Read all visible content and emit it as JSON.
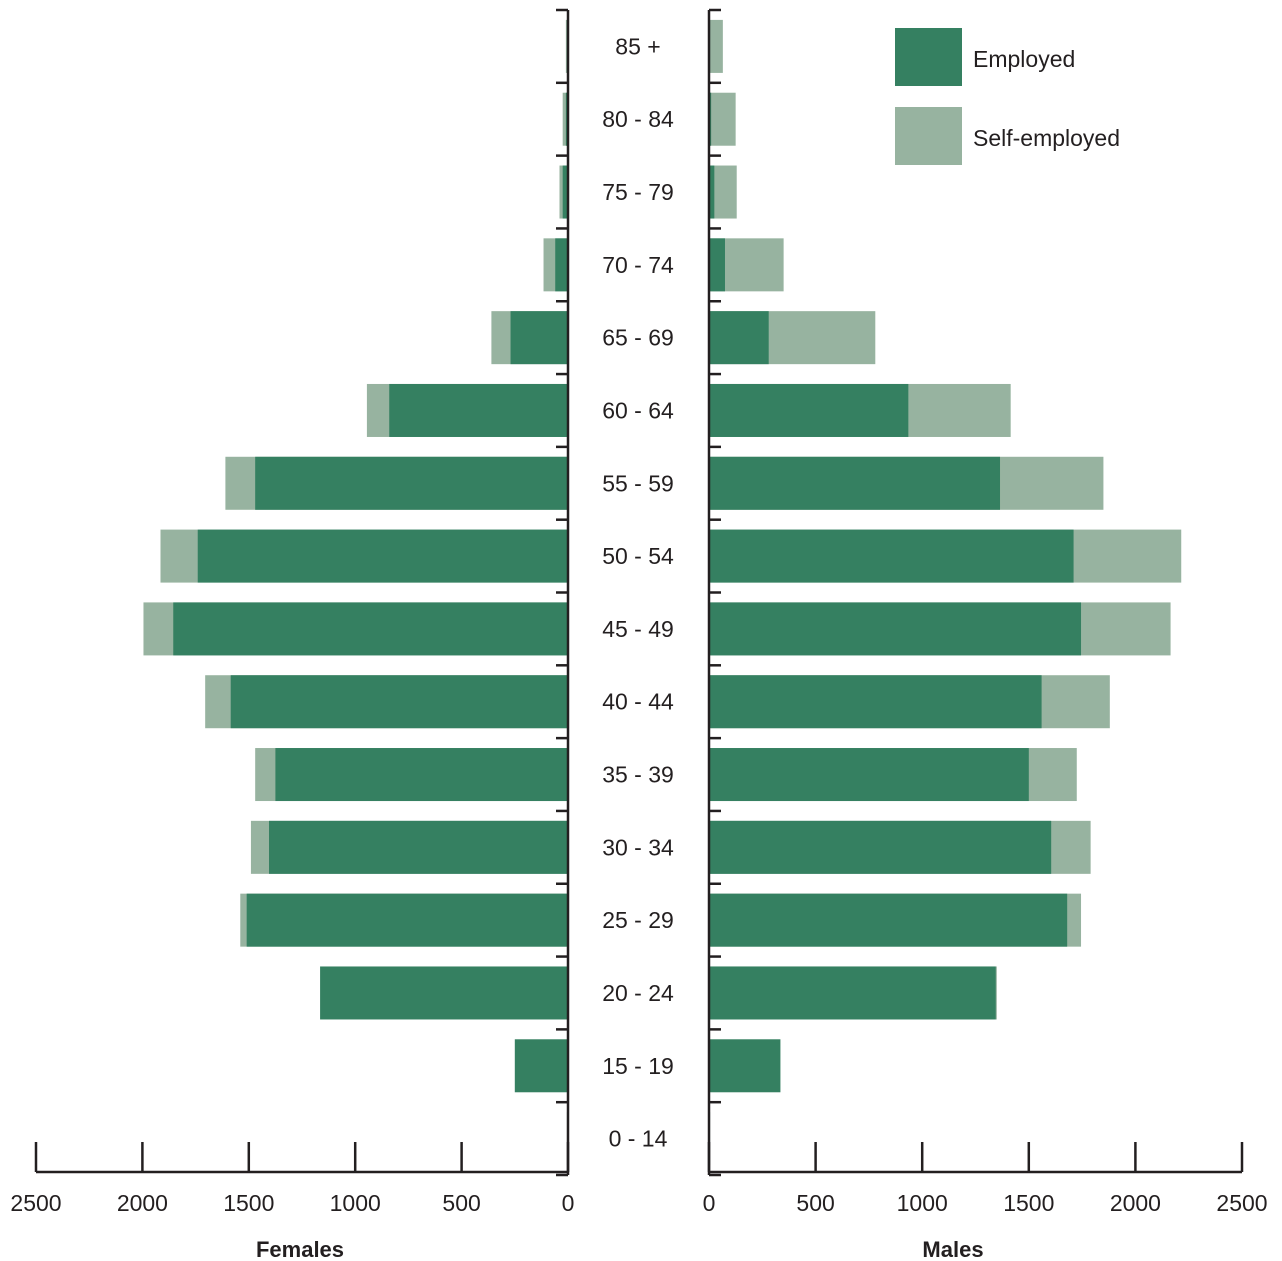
{
  "chart_data": {
    "type": "bar",
    "orientation": "horizontal",
    "stacked": true,
    "categories": [
      "0 - 14",
      "15 - 19",
      "20 - 24",
      "25 - 29",
      "30 - 34",
      "35 - 39",
      "40 - 44",
      "45 - 49",
      "50 - 54",
      "55 - 59",
      "60 - 64",
      "65 - 69",
      "70 - 74",
      "75 - 79",
      "80 - 84",
      "85 +"
    ],
    "colors": {
      "Employed": "#358061",
      "Self-employed": "#97b3a0"
    },
    "legend": {
      "position": "top-right",
      "items": [
        {
          "label": "Employed",
          "color": "#358061"
        },
        {
          "label": "Self-employed",
          "color": "#97b3a0"
        }
      ]
    },
    "panels": [
      {
        "xlabel": "Females",
        "xlim": [
          0,
          2500
        ],
        "direction": "leftward",
        "ticks": [
          "2500",
          "2000",
          "1500",
          "1000",
          "500",
          "0"
        ],
        "tick_values": [
          2500,
          2000,
          1500,
          1000,
          500,
          0
        ],
        "series": [
          {
            "name": "Employed",
            "values": [
              5,
              250,
              1165,
              1510,
              1405,
              1375,
              1585,
              1855,
              1740,
              1470,
              840,
              270,
              60,
              25,
              10,
              5
            ]
          },
          {
            "name": "Self-employed",
            "values": [
              0,
              0,
              0,
              30,
              85,
              95,
              120,
              140,
              175,
              140,
              105,
              90,
              55,
              15,
              15,
              5
            ]
          }
        ]
      },
      {
        "xlabel": "Males",
        "xlim": [
          0,
          2500
        ],
        "direction": "rightward",
        "ticks": [
          "0",
          "500",
          "1000",
          "1500",
          "2000",
          "2500"
        ],
        "tick_values": [
          0,
          500,
          1000,
          1500,
          2000,
          2500
        ],
        "series": [
          {
            "name": "Employed",
            "values": [
              5,
              335,
              1345,
              1680,
              1605,
              1500,
              1560,
              1745,
              1710,
              1365,
              935,
              280,
              75,
              25,
              10,
              5
            ]
          },
          {
            "name": "Self-employed",
            "values": [
              0,
              0,
              5,
              65,
              185,
              225,
              320,
              420,
              505,
              485,
              480,
              500,
              275,
              105,
              115,
              60
            ]
          }
        ]
      }
    ]
  }
}
